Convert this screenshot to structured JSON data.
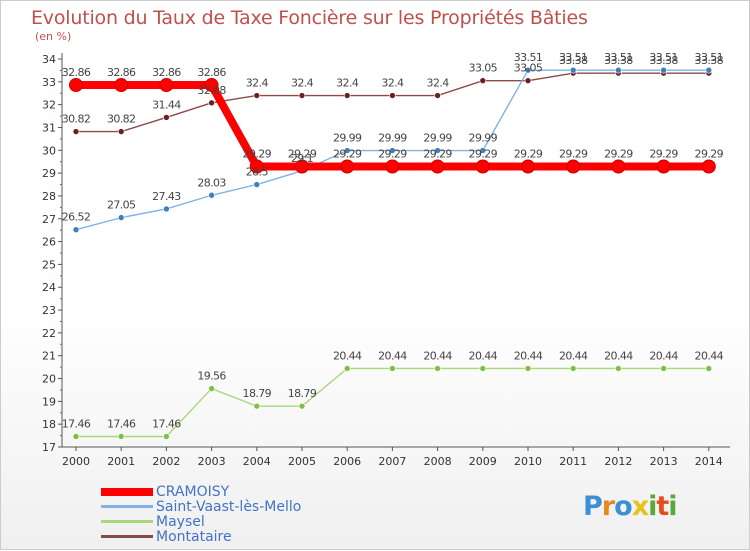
{
  "header": {
    "title": "Evolution du Taux de Taxe Foncière sur les Propriétés Bâties",
    "unit": "(en %)"
  },
  "chart_data": {
    "type": "line",
    "title": "Evolution du Taux de Taxe Foncière sur les Propriétés Bâties",
    "ylabel": "(en %)",
    "xlabel": "",
    "categories": [
      "2000",
      "2001",
      "2002",
      "2003",
      "2004",
      "2005",
      "2006",
      "2007",
      "2008",
      "2009",
      "2010",
      "2011",
      "2012",
      "2013",
      "2014"
    ],
    "ylim": [
      17,
      34
    ],
    "yticks": [
      17,
      18,
      19,
      20,
      21,
      22,
      23,
      24,
      25,
      26,
      27,
      28,
      29,
      30,
      31,
      32,
      33,
      34
    ],
    "grid": false,
    "legend_position": "bottom-left",
    "series": [
      {
        "name": "CRAMOISY",
        "color": "#ff0000",
        "thick": true,
        "values": [
          32.86,
          32.86,
          32.86,
          32.86,
          29.29,
          29.29,
          29.29,
          29.29,
          29.29,
          29.29,
          29.29,
          29.29,
          29.29,
          29.29,
          29.29
        ],
        "labels": [
          "32.86",
          "32.86",
          "32.86",
          "32.86",
          "29.29",
          "29.29",
          "29.29",
          "29.29",
          "29.29",
          "29.29",
          "29.29",
          "29.29",
          "29.29",
          "29.29",
          "29.29"
        ]
      },
      {
        "name": "Saint-Vaast-lès-Mello",
        "color": "#7fb2e5",
        "marker": "#3d7fc1",
        "values": [
          26.52,
          27.05,
          27.43,
          28.03,
          28.5,
          29.1,
          29.99,
          29.99,
          29.99,
          29.99,
          33.51,
          33.51,
          33.51,
          33.51,
          33.51
        ],
        "labels": [
          "26.52",
          "27.05",
          "27.43",
          "28.03",
          "28.5",
          "29.1",
          "29.99",
          "29.99",
          "29.99",
          "29.99",
          "33.51",
          "33.51",
          "33.51",
          "33.51",
          "33.51"
        ]
      },
      {
        "name": "Maysel",
        "color": "#a8d878",
        "marker": "#7cc242",
        "values": [
          17.46,
          17.46,
          17.46,
          19.56,
          18.79,
          18.79,
          20.44,
          20.44,
          20.44,
          20.44,
          20.44,
          20.44,
          20.44,
          20.44,
          20.44
        ],
        "labels": [
          "17.46",
          "17.46",
          "17.46",
          "19.56",
          "18.79",
          "18.79",
          "20.44",
          "20.44",
          "20.44",
          "20.44",
          "20.44",
          "20.44",
          "20.44",
          "20.44",
          "20.44"
        ]
      },
      {
        "name": "Montataire",
        "color": "#8b4a4a",
        "marker": "#6b2020",
        "values": [
          30.82,
          30.82,
          31.44,
          32.08,
          32.4,
          32.4,
          32.4,
          32.4,
          32.4,
          33.05,
          33.05,
          33.38,
          33.38,
          33.38,
          33.38
        ],
        "labels": [
          "30.82",
          "30.82",
          "31.44",
          "32.08",
          "32.4",
          "32.4",
          "32.4",
          "32.4",
          "32.4",
          "33.05",
          "33.05",
          "33.38",
          "33.38",
          "33.38",
          "33.38"
        ]
      }
    ]
  },
  "legend": {
    "items": [
      {
        "label": "CRAMOISY",
        "color": "#ff0000"
      },
      {
        "label": "Saint-Vaast-lès-Mello",
        "color": "#7fb2e5"
      },
      {
        "label": "Maysel",
        "color": "#a8d878"
      },
      {
        "label": "Montataire",
        "color": "#8b4a4a"
      }
    ]
  },
  "logo": {
    "text": "Proxiti",
    "letters": [
      {
        "ch": "P",
        "color": "#3b8fd6"
      },
      {
        "ch": "r",
        "color": "#e88a1a"
      },
      {
        "ch": "o",
        "color": "#3b8fd6"
      },
      {
        "ch": "x",
        "color": "#e8c21a"
      },
      {
        "ch": "i",
        "color": "#5aa83a"
      },
      {
        "ch": "t",
        "color": "#e84a1a"
      },
      {
        "ch": "i",
        "color": "#5aa83a"
      }
    ]
  }
}
